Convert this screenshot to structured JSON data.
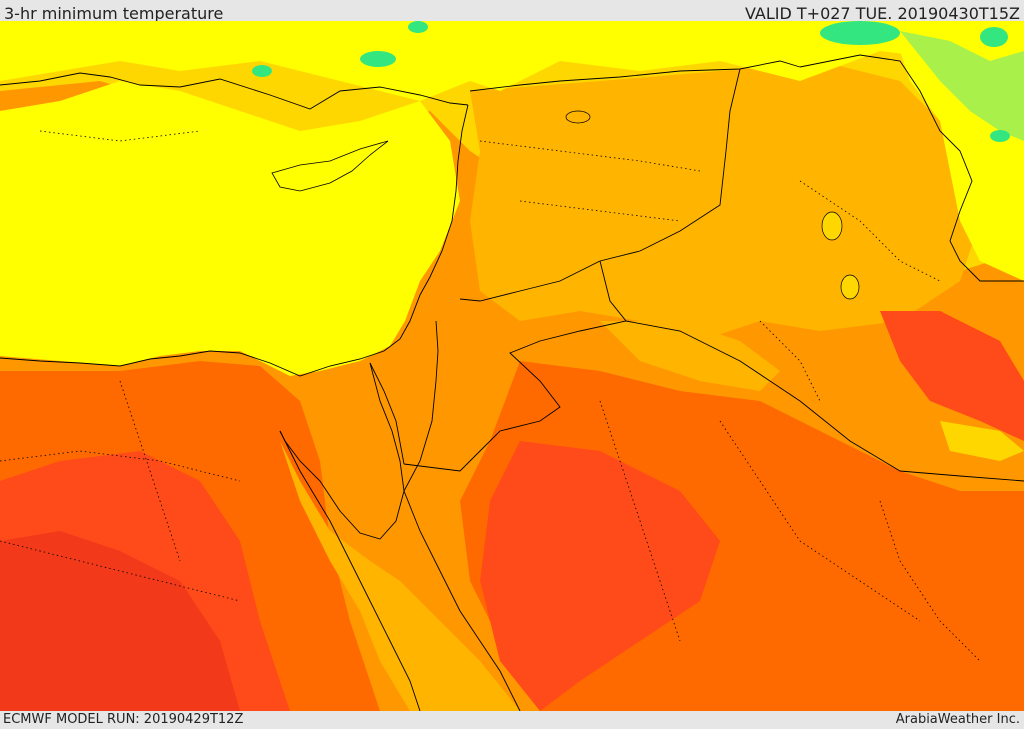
{
  "header": {
    "title": "3-hr minimum temperature",
    "valid": "VALID T+027 TUE. 20190430T15Z"
  },
  "footer": {
    "model_run": "ECMWF MODEL RUN: 20190429T12Z",
    "credit": "ArabiaWeather Inc."
  },
  "map": {
    "field": "3-hr minimum temperature",
    "palette": {
      "green": "#33e680",
      "light_green": "#aaf04a",
      "yellow": "#ffff00",
      "gold": "#ffd700",
      "amber": "#ffb400",
      "orange": "#ff9800",
      "dark_orange": "#ff6a00",
      "red_orange": "#ff4a1a",
      "red": "#f23a1a"
    },
    "borders_color": "#000000"
  }
}
